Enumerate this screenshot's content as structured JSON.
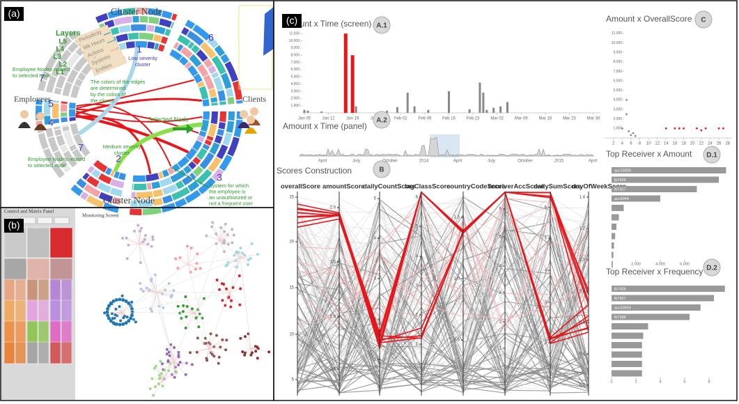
{
  "panel_a": {
    "label": "(a)",
    "cluster_node_top": "Cluster Node",
    "cluster_node_bottom": "Cluster Node",
    "layers_title": "Layers",
    "layers": [
      {
        "level": "L5",
        "name": "Periodicity"
      },
      {
        "level": "L4",
        "name": "Wk Hours"
      },
      {
        "level": "L3",
        "name": "Actions"
      },
      {
        "level": "L2",
        "name": "Systems"
      },
      {
        "level": "L1",
        "name": "Entities"
      }
    ],
    "cluster_numbers": [
      "1",
      "6",
      "7",
      "5",
      "4",
      "7",
      "2",
      "3"
    ],
    "low_severity": [
      "Low severity",
      "cluster"
    ],
    "edge_note": [
      "The colors of the edges",
      "are determined",
      "by the colors of",
      "the clients"
    ],
    "selected_node": "Selected Node",
    "medium_severity": [
      "Medium severity",
      "cluster"
    ],
    "system_note": [
      "System for which",
      "the employee is",
      "an unauthorized or",
      "not a frequent user"
    ],
    "employee_nodes_top": [
      "Employee Nodes related",
      "to selected node"
    ],
    "employee_nodes_bottom": [
      "Employee Nodes related",
      "to selected node"
    ],
    "employees": "Employees",
    "clients": "Clients"
  },
  "panel_b": {
    "label": "(b)",
    "control_panel": "Control and Matrix Panel",
    "monitoring_screen": "Monitoring Screen"
  },
  "panel_c": {
    "label": "(c)",
    "a1": {
      "title": "Amount x Time (screen)",
      "badge": "A.1",
      "xlim": [
        5,
        89
      ],
      "ylim": [
        0,
        11500
      ],
      "xticks": [
        {
          "value": 5,
          "label": "Jan 05"
        },
        {
          "value": 12,
          "label": "Jan 12"
        },
        {
          "value": 19,
          "label": "Jan 19"
        },
        {
          "value": 26,
          "label": "Jan 26"
        },
        {
          "value": 33,
          "label": "Feb 02"
        },
        {
          "value": 40,
          "label": "Feb 09"
        },
        {
          "value": 47,
          "label": "Feb 16"
        },
        {
          "value": 54,
          "label": "Feb 23"
        },
        {
          "value": 61,
          "label": "Mar 02"
        },
        {
          "value": 68,
          "label": "Mar 09"
        },
        {
          "value": 75,
          "label": "Mar 16"
        },
        {
          "value": 82,
          "label": "Mar 23"
        },
        {
          "value": 89,
          "label": "Mar 30"
        }
      ],
      "yticks": [
        {
          "value": 1000,
          "label": "1,000"
        },
        {
          "value": 2000,
          "label": "2,000"
        },
        {
          "value": 3000,
          "label": "3,000"
        },
        {
          "value": 4000,
          "label": "4,000"
        },
        {
          "value": 5000,
          "label": "5,000"
        },
        {
          "value": 6000,
          "label": "6,000"
        },
        {
          "value": 7000,
          "label": "7,000"
        },
        {
          "value": 8000,
          "label": "8,000"
        },
        {
          "value": 9000,
          "label": "9,000"
        },
        {
          "value": 10000,
          "label": "10,000"
        },
        {
          "value": 11000,
          "label": "11,000"
        }
      ],
      "x": [
        5,
        6,
        10,
        17,
        19,
        20,
        29,
        32,
        35,
        37,
        41,
        47,
        53,
        56,
        57,
        58,
        60,
        62,
        64
      ],
      "values": [
        400,
        300,
        200,
        11000,
        8000,
        900,
        300,
        800,
        2800,
        900,
        400,
        3000,
        500,
        4200,
        2800,
        400,
        700,
        900,
        1500
      ],
      "colors": [
        "#888",
        "#888",
        "#888",
        "#e8161b",
        "#e8161b",
        "#888",
        "#888",
        "#888",
        "#888",
        "#888",
        "#888",
        "#888",
        "#888",
        "#888",
        "#888",
        "#888",
        "#888",
        "#888",
        "#888"
      ]
    },
    "a2": {
      "title": "Amount x Time (panel)",
      "badge": "A.2",
      "xtick_labels": [
        "April",
        "July",
        "October",
        "2014",
        "April",
        "July",
        "October",
        "2015",
        "April"
      ]
    },
    "b": {
      "title": "Scores Construction",
      "badge": "B",
      "axes": [
        {
          "name": "overallScore",
          "ticks": [
            "25",
            "20",
            "15",
            "10",
            "5"
          ]
        },
        {
          "name": "amountScore",
          "ticks": [
            "2.0",
            "1.5",
            "1.0",
            "0.5"
          ]
        },
        {
          "name": "dailyCountScore",
          "ticks": [
            "5",
            "4",
            "3",
            "2",
            "1"
          ]
        },
        {
          "name": "lagClassScore",
          "ticks": [
            "6",
            "5",
            "4",
            "3",
            "2",
            "1"
          ]
        },
        {
          "name": "countryCodeScore",
          "ticks": [
            "1.5",
            "1.0",
            "0.5"
          ]
        },
        {
          "name": "receiverAccScore",
          "ticks": [
            "6",
            "5",
            "4",
            "3",
            "2",
            "1"
          ]
        },
        {
          "name": "dailySumScore",
          "ticks": [
            "6",
            "5",
            "4",
            "3",
            "2"
          ]
        },
        {
          "name": "dayOfWeekScore",
          "ticks": [
            "1.4",
            "1.2",
            "1.0",
            "0.8",
            "0.6",
            "0.4",
            "0.2"
          ]
        }
      ]
    },
    "c": {
      "title": "Amount x OverallScore",
      "badge": "C",
      "xlim": [
        0,
        29
      ],
      "ylim": [
        0,
        11500
      ],
      "xticks": [
        2,
        4,
        6,
        8,
        10,
        12,
        14,
        16,
        18,
        20,
        22,
        24,
        26,
        28
      ],
      "yticks": [
        {
          "value": 1000,
          "label": "1,000"
        },
        {
          "value": 2000,
          "label": "2,000"
        },
        {
          "value": 3000,
          "label": "3,000"
        },
        {
          "value": 4000,
          "label": "4,000"
        },
        {
          "value": 5000,
          "label": "5,000"
        },
        {
          "value": 6000,
          "label": "6,000"
        },
        {
          "value": 7000,
          "label": "7,000"
        },
        {
          "value": 8000,
          "label": "8,000"
        },
        {
          "value": 9000,
          "label": "9,000"
        },
        {
          "value": 10000,
          "label": "10,000"
        },
        {
          "value": 11000,
          "label": "11,000"
        }
      ],
      "x": [
        4,
        5,
        5,
        5.5,
        6,
        6.5,
        7,
        14,
        16,
        17,
        18,
        21,
        22,
        23,
        26,
        27
      ],
      "values": [
        1000,
        2500,
        4000,
        700,
        300,
        500,
        200,
        1000,
        1000,
        1000,
        1000,
        1000,
        800,
        1000,
        1000,
        1000
      ],
      "colors": [
        "#888",
        "#888",
        "#888",
        "#888",
        "#888",
        "#888",
        "#888",
        "#e8161b",
        "#e8161b",
        "#e8161b",
        "#e8161b",
        "#e8161b",
        "#e8161b",
        "#e8161b",
        "#e8161b",
        "#e8161b"
      ]
    },
    "d1": {
      "title": "Top Receiver x Amount",
      "badge": "D.1",
      "categories": [
        "acc10559",
        "lb7426",
        "lb7427",
        "acc6044",
        null,
        null,
        null,
        null,
        null,
        null,
        null
      ],
      "values": [
        9400,
        8800,
        7000,
        4000,
        1000,
        600,
        400,
        300,
        200,
        150,
        100
      ],
      "xlim": [
        0,
        10000
      ],
      "xticks": [
        {
          "value": 2000,
          "label": "2,000"
        },
        {
          "value": 4000,
          "label": "4,000"
        },
        {
          "value": 6000,
          "label": "6,000"
        }
      ],
      "color": "#999999"
    },
    "d2": {
      "title": "Top Receiver x Frequency",
      "badge": "D.2",
      "categories": [
        "lb7426",
        "lb7427",
        "acc10559",
        "lb7396",
        null,
        null,
        null,
        null,
        null,
        null
      ],
      "values": [
        9.3,
        8.4,
        7.3,
        6.4,
        3,
        2.6,
        2.5,
        2.5,
        2.5,
        2.5
      ],
      "xlim": [
        0,
        10
      ],
      "xticks": [
        0,
        2,
        4,
        6,
        8
      ],
      "color": "#999999"
    }
  }
}
